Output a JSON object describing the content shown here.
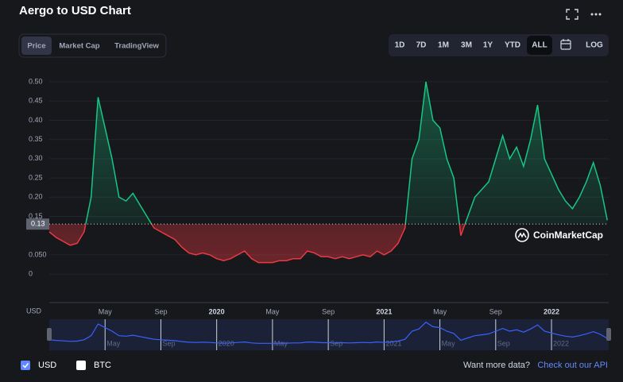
{
  "header": {
    "title": "Aergo to USD Chart"
  },
  "tabs": {
    "labels": [
      "Price",
      "Market Cap",
      "TradingView"
    ],
    "active": 0
  },
  "ranges": {
    "labels": [
      "1D",
      "7D",
      "1M",
      "3M",
      "1Y",
      "YTD",
      "ALL"
    ],
    "active": 6,
    "log": "LOG"
  },
  "chart_data": {
    "type": "line",
    "x": [
      0,
      0.5,
      1,
      1.5,
      2,
      2.5,
      3,
      3.5,
      4,
      4.5,
      5,
      5.5,
      6,
      6.5,
      7,
      7.5,
      8,
      8.5,
      9,
      9.5,
      10,
      10.5,
      11,
      11.5,
      12,
      12.5,
      13,
      13.5,
      14,
      14.5,
      15,
      15.5,
      16,
      16.5,
      17,
      17.5,
      18,
      18.5,
      19,
      19.5,
      20,
      20.5,
      21,
      21.5,
      22,
      22.5,
      23,
      23.5,
      24,
      24.5,
      25,
      25.5,
      26,
      26.5,
      27,
      27.5,
      28,
      28.5,
      29,
      29.5,
      30,
      30.5,
      31,
      31.5,
      32,
      32.5,
      33,
      33.5,
      34,
      34.5,
      35,
      35.5,
      36,
      36.5,
      37,
      37.5,
      38,
      38.5,
      39,
      39.5,
      40
    ],
    "values": [
      0.11,
      0.095,
      0.085,
      0.075,
      0.08,
      0.11,
      0.2,
      0.46,
      0.38,
      0.3,
      0.2,
      0.19,
      0.21,
      0.18,
      0.15,
      0.12,
      0.11,
      0.1,
      0.09,
      0.07,
      0.055,
      0.05,
      0.055,
      0.05,
      0.04,
      0.035,
      0.04,
      0.05,
      0.06,
      0.04,
      0.03,
      0.03,
      0.03,
      0.035,
      0.035,
      0.04,
      0.04,
      0.06,
      0.055,
      0.045,
      0.045,
      0.04,
      0.045,
      0.04,
      0.045,
      0.05,
      0.045,
      0.06,
      0.05,
      0.06,
      0.08,
      0.12,
      0.3,
      0.35,
      0.5,
      0.4,
      0.38,
      0.3,
      0.25,
      0.1,
      0.15,
      0.2,
      0.22,
      0.24,
      0.3,
      0.36,
      0.3,
      0.33,
      0.28,
      0.35,
      0.44,
      0.3,
      0.26,
      0.22,
      0.19,
      0.17,
      0.2,
      0.24,
      0.29,
      0.23,
      0.14
    ],
    "xlim": [
      0,
      40.1
    ],
    "xticks": [
      {
        "value": 4,
        "label": "May"
      },
      {
        "value": 8,
        "label": "Sep"
      },
      {
        "value": 12,
        "label": "2020"
      },
      {
        "value": 16,
        "label": "May"
      },
      {
        "value": 20,
        "label": "Sep"
      },
      {
        "value": 24,
        "label": "2021"
      },
      {
        "value": 28,
        "label": "May"
      },
      {
        "value": 32,
        "label": "Sep"
      },
      {
        "value": 36,
        "label": "2022"
      }
    ],
    "ylim": [
      -0.07,
      0.53
    ],
    "yticks": [
      0,
      {
        "value": 0.05,
        "label": "0.050"
      },
      0.15,
      {
        "value": 0.2,
        "label": "0.20"
      },
      0.25,
      {
        "value": 0.3,
        "label": "0.30"
      },
      0.35,
      {
        "value": 0.4,
        "label": "0.40"
      },
      0.45,
      {
        "value": 0.5,
        "label": "0.50"
      }
    ],
    "current_price": 0.13,
    "up_color": "#16c784",
    "down_color": "#ea3943",
    "navigator_color": "#3861fb",
    "grid": true,
    "volume_label": "USD",
    "watermark": "CoinMarketCap"
  },
  "footer": {
    "currencies": [
      {
        "name": "USD",
        "checked": true
      },
      {
        "name": "BTC",
        "checked": false
      }
    ],
    "prompt": "Want more data?",
    "link": "Check out our API"
  }
}
